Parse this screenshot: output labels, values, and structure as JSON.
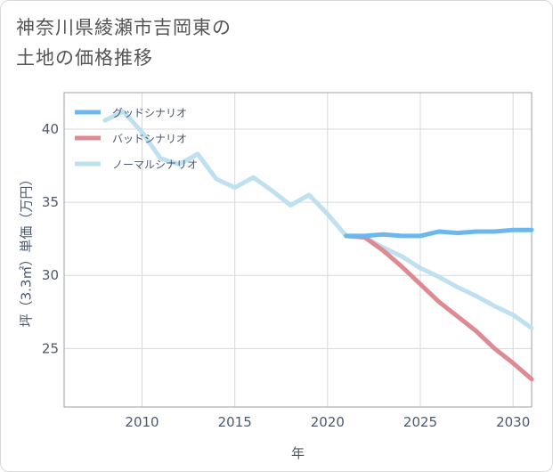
{
  "title_lines": [
    "神奈川県綾瀬市吉岡東の",
    "土地の価格推移"
  ],
  "chart_data": {
    "type": "line",
    "title": "神奈川県綾瀬市吉岡東の土地の価格推移",
    "xlabel": "年",
    "ylabel": "坪（3.3㎡）単価（万円）",
    "xlim": [
      2005.8,
      2031
    ],
    "ylim": [
      21,
      42.5
    ],
    "x_ticks": [
      2010,
      2015,
      2020,
      2025,
      2030
    ],
    "y_ticks": [
      25,
      30,
      35,
      40
    ],
    "grid": true,
    "legend_position": "top-left",
    "series": [
      {
        "name": "グッドシナリオ",
        "color": "#6cb8ee",
        "x": [
          2021,
          2022,
          2023,
          2024,
          2025,
          2026,
          2027,
          2028,
          2029,
          2030,
          2031
        ],
        "y": [
          32.7,
          32.7,
          32.8,
          32.7,
          32.7,
          33.0,
          32.9,
          33.0,
          33.0,
          33.1,
          33.1
        ]
      },
      {
        "name": "バッドシナリオ",
        "color": "#dd8a93",
        "x": [
          2021,
          2022,
          2023,
          2024,
          2025,
          2026,
          2027,
          2028,
          2029,
          2030,
          2031
        ],
        "y": [
          32.7,
          32.6,
          31.7,
          30.6,
          29.4,
          28.2,
          27.2,
          26.2,
          25.0,
          24.0,
          22.9
        ]
      },
      {
        "name": "ノーマルシナリオ",
        "color": "#bfe0ef",
        "x": [
          2008,
          2009,
          2010,
          2011,
          2012,
          2013,
          2014,
          2015,
          2016,
          2017,
          2018,
          2019,
          2020,
          2021,
          2022,
          2023,
          2024,
          2025,
          2026,
          2027,
          2028,
          2029,
          2030,
          2031
        ],
        "y": [
          40.6,
          41.2,
          39.8,
          38.0,
          37.6,
          38.3,
          36.6,
          36.0,
          36.7,
          35.8,
          34.8,
          35.5,
          34.2,
          32.7,
          32.6,
          31.9,
          31.3,
          30.5,
          29.9,
          29.2,
          28.6,
          27.9,
          27.3,
          26.4
        ]
      }
    ]
  }
}
